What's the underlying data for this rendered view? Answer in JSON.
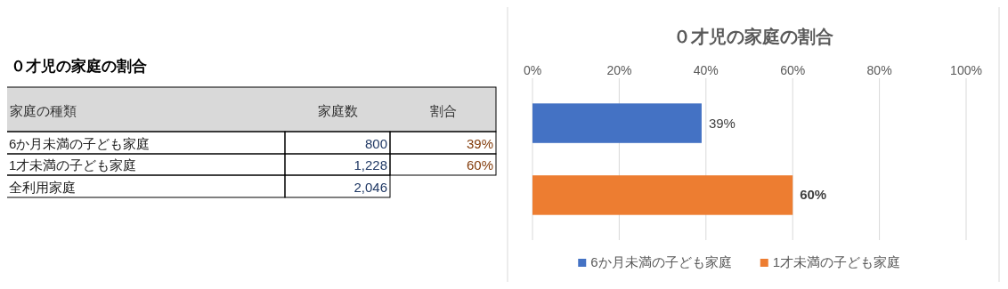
{
  "chart_data": [
    {
      "type": "other",
      "title": "０才児の家庭の割合",
      "annotations": [
        "家庭の種類"
      ],
      "categories": [
        "6か月未満の子ども家庭",
        "1才未満の子ども家庭",
        "全利用家庭"
      ],
      "series": [
        {
          "name": "家庭数",
          "values": [
            800,
            1228,
            2046
          ],
          "value_labels": [
            "800",
            "1,228",
            "2,046"
          ]
        },
        {
          "name": "割合",
          "values": [
            39,
            60,
            null
          ],
          "value_labels": [
            "39%",
            "60%",
            null
          ]
        }
      ]
    },
    {
      "type": "bar",
      "orientation": "horizontal",
      "title": "０才児の家庭の割合",
      "categories": [
        null,
        null
      ],
      "series": [
        {
          "name": "6か月未満の子ども家庭",
          "color": "#4472c4",
          "values": [
            39,
            null
          ],
          "value_labels": [
            "39%",
            null
          ]
        },
        {
          "name": "1才未満の子ども家庭",
          "color": "#ed7d31",
          "values": [
            null,
            60
          ],
          "value_labels": [
            null,
            "60%"
          ]
        }
      ],
      "xlim": [
        0,
        100
      ],
      "xticks": [
        {
          "value": 0,
          "label": "0%"
        },
        {
          "value": 20,
          "label": "20%"
        },
        {
          "value": 40,
          "label": "40%"
        },
        {
          "value": 60,
          "label": "60%"
        },
        {
          "value": 80,
          "label": "80%"
        },
        {
          "value": 100,
          "label": "100%"
        }
      ],
      "grid": "x",
      "legend": "bottom"
    }
  ]
}
